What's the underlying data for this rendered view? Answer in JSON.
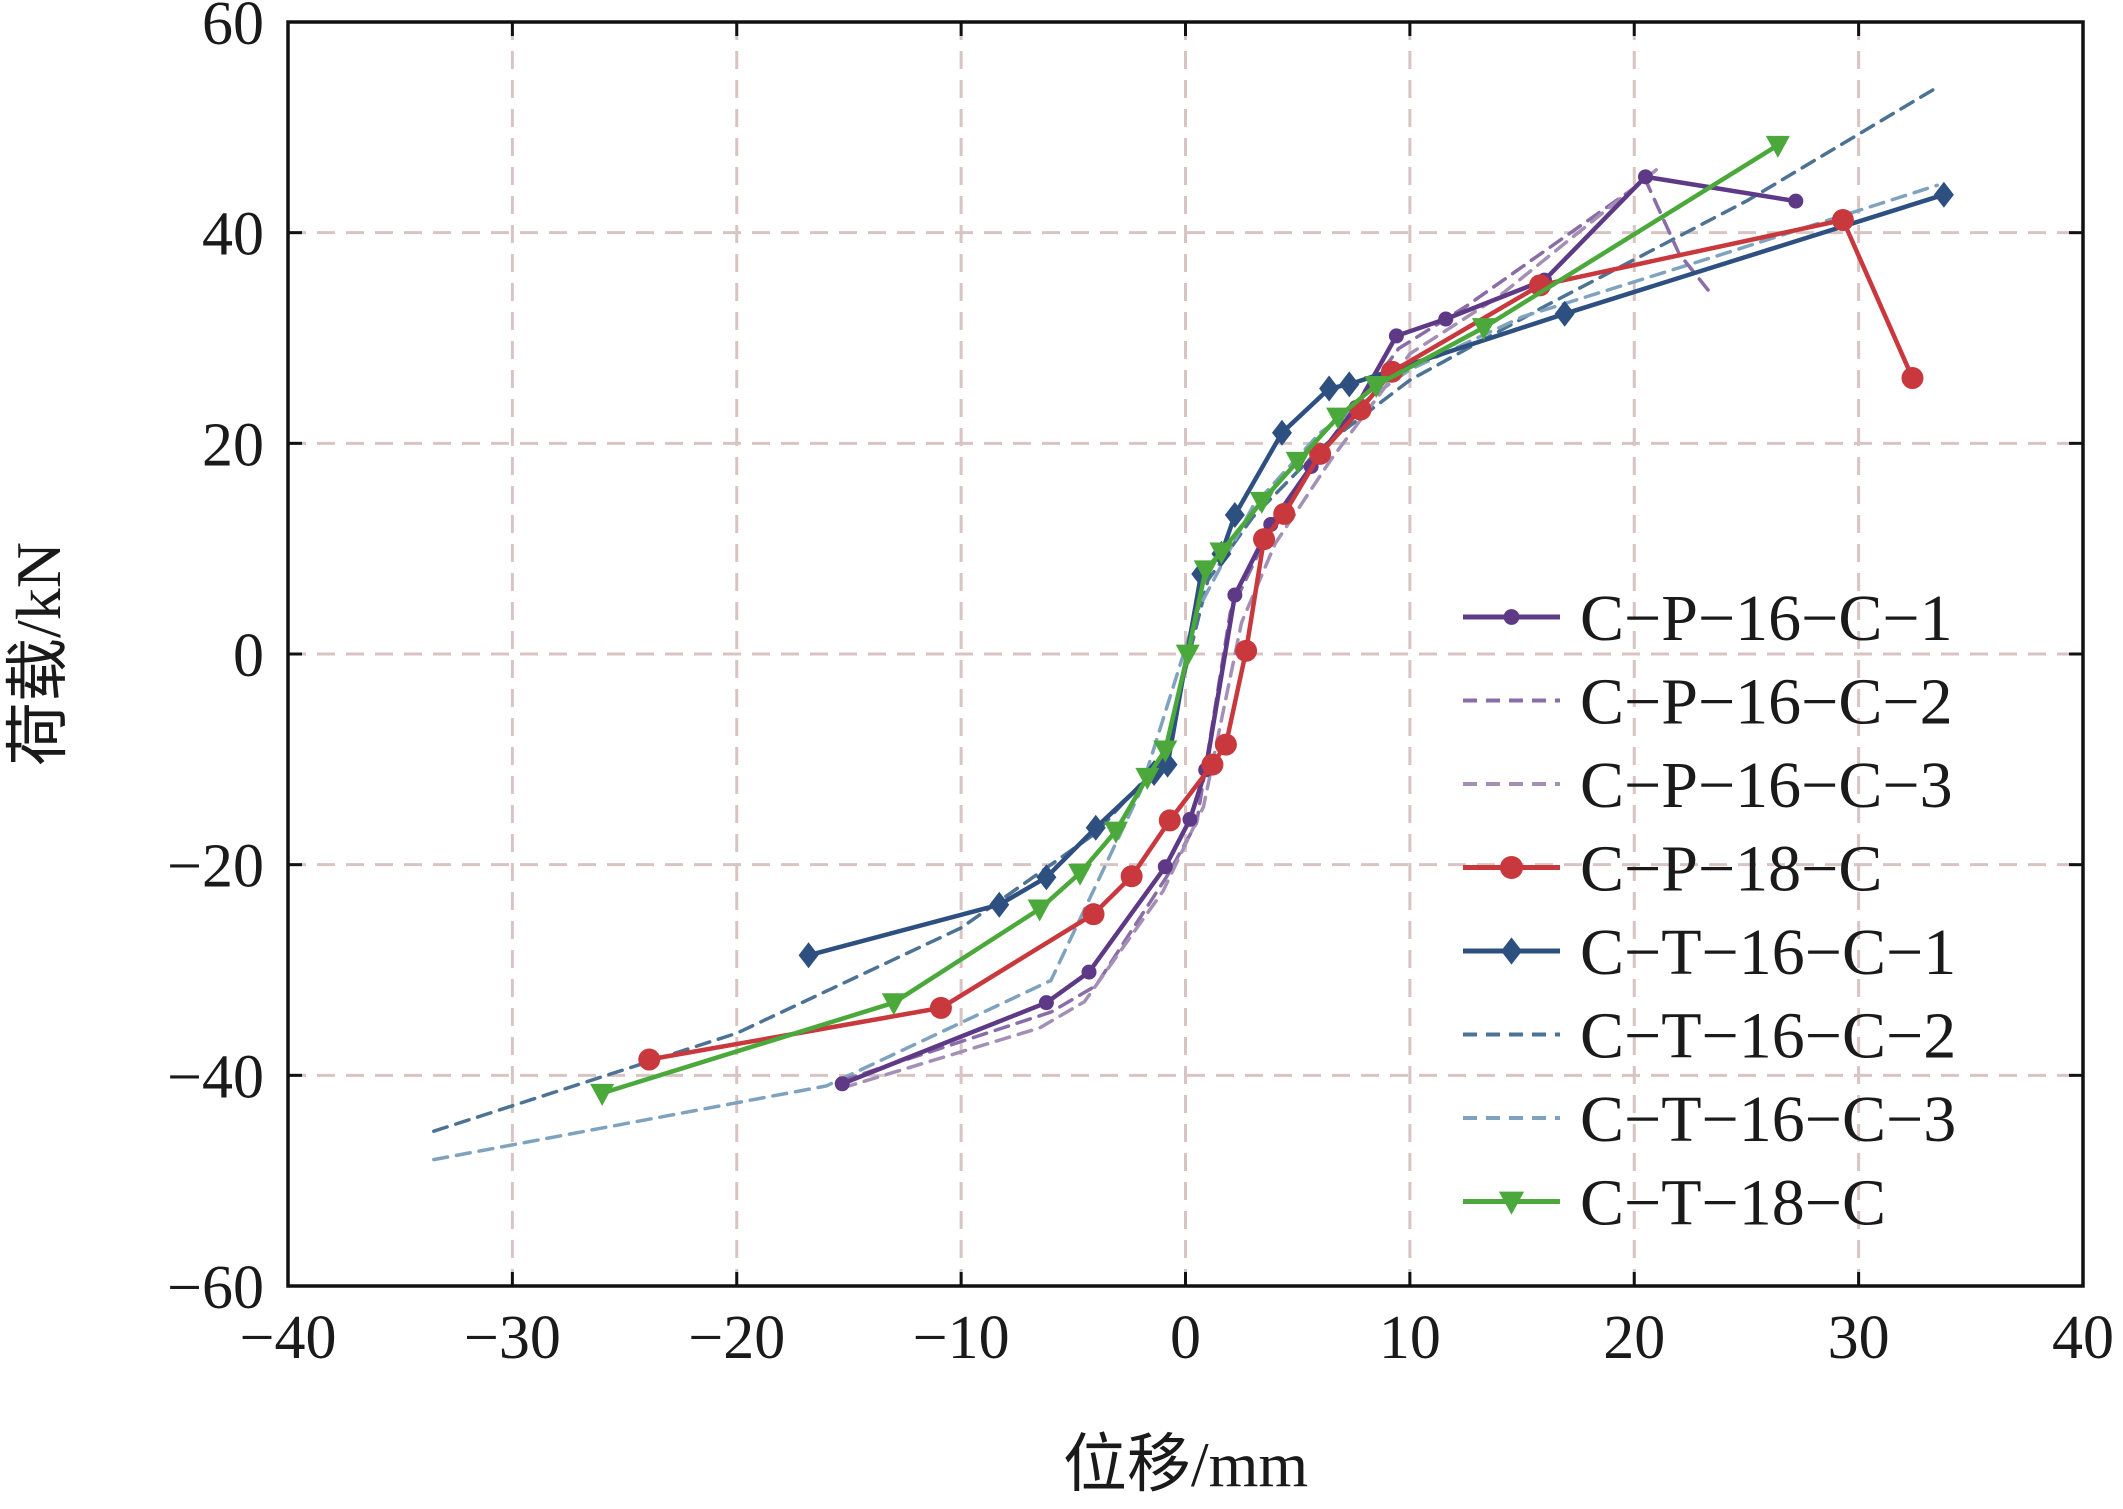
{
  "chart_data": {
    "type": "line",
    "xlabel": "位移/mm",
    "ylabel": "荷载/kN",
    "xlim": [
      -40,
      40
    ],
    "ylim": [
      -60,
      60
    ],
    "xticks": [
      -40,
      -30,
      -20,
      -10,
      0,
      10,
      20,
      30,
      40
    ],
    "yticks": [
      -60,
      -40,
      -20,
      0,
      20,
      40,
      60
    ],
    "xtick_labels": [
      "−40",
      "−30",
      "−20",
      "−10",
      "0",
      "10",
      "20",
      "30",
      "40"
    ],
    "ytick_labels": [
      "−60",
      "−40",
      "−20",
      "0",
      "20",
      "40",
      "60"
    ],
    "grid": true,
    "legend_position": "right-center",
    "series": [
      {
        "name": "C−P−16−C−1",
        "color": "#5e3a86",
        "style": "solid",
        "marker": "small-circle",
        "x": [
          -15.3,
          -6.2,
          -4.3,
          -0.9,
          0.2,
          0.9,
          2.2,
          3.8,
          5.6,
          7.6,
          9.4,
          11.6,
          16.0,
          20.5,
          27.2
        ],
        "y": [
          -40.8,
          -33.1,
          -30.2,
          -20.2,
          -15.7,
          -11.0,
          5.6,
          12.3,
          17.8,
          23.4,
          30.2,
          31.8,
          35.5,
          45.3,
          43.0
        ]
      },
      {
        "name": "C−P−16−C−2",
        "color": "#8a6ca8",
        "style": "dashed",
        "marker": "none",
        "x": [
          -15.3,
          -6.0,
          -4.0,
          -0.8,
          0.5,
          2.0,
          3.8,
          6.0,
          9.5,
          12.5,
          20.5,
          22.0,
          23.5
        ],
        "y": [
          -40.5,
          -34.0,
          -31.5,
          -21.0,
          -16.0,
          4.0,
          12.0,
          19.0,
          29.0,
          33.0,
          45.0,
          38.0,
          34.0
        ]
      },
      {
        "name": "C−P−16−C−3",
        "color": "#a48fb6",
        "style": "dashed",
        "marker": "none",
        "x": [
          -15.3,
          -6.5,
          -4.5,
          -1.0,
          0.8,
          2.5,
          4.0,
          6.5,
          10.0,
          14.0,
          21.0
        ],
        "y": [
          -41.2,
          -35.5,
          -33.0,
          -22.5,
          -14.5,
          3.0,
          10.5,
          18.5,
          28.5,
          34.0,
          46.0
        ]
      },
      {
        "name": "C−P−18−C",
        "color": "#c8383c",
        "style": "solid",
        "marker": "circle",
        "x": [
          -23.9,
          -10.9,
          -4.1,
          -2.4,
          -0.7,
          1.2,
          1.8,
          2.7,
          3.5,
          4.4,
          6.0,
          7.8,
          9.2,
          15.8,
          29.3,
          32.4
        ],
        "y": [
          -38.5,
          -33.6,
          -24.7,
          -21.1,
          -15.8,
          -10.5,
          -8.6,
          0.3,
          10.9,
          13.3,
          19.0,
          23.2,
          26.8,
          35.0,
          41.2,
          26.2
        ]
      },
      {
        "name": "C−T−16−C−1",
        "color": "#2d5080",
        "style": "solid",
        "marker": "diamond",
        "x": [
          -16.8,
          -8.3,
          -6.2,
          -4.0,
          -1.4,
          -0.8,
          0.7,
          1.6,
          2.2,
          4.3,
          6.4,
          7.3,
          16.9,
          33.8
        ],
        "y": [
          -28.6,
          -23.8,
          -21.2,
          -16.5,
          -11.3,
          -10.5,
          7.6,
          9.5,
          13.2,
          21.0,
          25.2,
          25.6,
          32.3,
          43.6
        ]
      },
      {
        "name": "C−T−16−C−2",
        "color": "#4d7394",
        "style": "dashed",
        "marker": "none",
        "x": [
          -33.5,
          -20.0,
          -10.0,
          -4.0,
          -1.0,
          1.0,
          3.0,
          6.0,
          10.0,
          16.0,
          25.0,
          33.5
        ],
        "y": [
          -45.3,
          -36.0,
          -26.0,
          -17.0,
          -10.0,
          7.0,
          13.0,
          19.5,
          26.0,
          33.0,
          43.0,
          53.8
        ]
      },
      {
        "name": "C−T−16−C−3",
        "color": "#7fa3bf",
        "style": "dashed",
        "marker": "none",
        "x": [
          -33.5,
          -16.0,
          -6.0,
          -2.0,
          0.5,
          3.0,
          6.0,
          10.0,
          15.0,
          24.0,
          33.5
        ],
        "y": [
          -48.0,
          -41.0,
          -31.0,
          -13.0,
          4.0,
          14.0,
          21.0,
          27.0,
          32.0,
          38.0,
          44.5
        ]
      },
      {
        "name": "C−T−18−C",
        "color": "#4aa93a",
        "style": "solid",
        "marker": "triangle-down",
        "x": [
          -26.0,
          -13.0,
          -6.5,
          -4.7,
          -3.1,
          -1.7,
          -0.9,
          0.1,
          0.9,
          1.6,
          3.4,
          5.0,
          6.8,
          8.5,
          13.3,
          26.4
        ],
        "y": [
          -41.7,
          -33.1,
          -24.2,
          -20.8,
          -16.8,
          -11.7,
          -9.1,
          0.0,
          8.0,
          9.7,
          14.5,
          18.3,
          22.5,
          25.5,
          31.0,
          48.3
        ]
      }
    ]
  }
}
